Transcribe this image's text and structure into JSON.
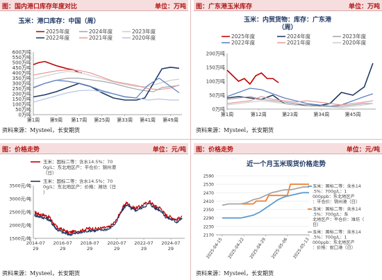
{
  "panels": [
    {
      "header": {
        "title": "图：国内港口库存年度对比",
        "unit": "单位：万吨"
      },
      "source": "资料来源：Mysteel，长安期货",
      "chart_data": {
        "type": "line",
        "title": "玉米：港口库存：中国（周）",
        "ytick_labels": [
          "0万吨",
          "50万吨",
          "100万吨",
          "150万吨",
          "200万吨",
          "250万吨",
          "300万吨",
          "350万吨",
          "400万吨",
          "450万吨",
          "500万吨",
          "550万吨",
          "600万吨"
        ],
        "xtick_labels": [
          "第1周",
          "第9周",
          "第17周",
          "第25周",
          "第33周",
          "第41周",
          "第49周"
        ],
        "ylim": [
          0,
          600
        ],
        "xlim": [
          1,
          53
        ],
        "xticks": [
          1,
          9,
          17,
          25,
          33,
          41,
          49
        ],
        "yticks": [
          0,
          50,
          100,
          150,
          200,
          250,
          300,
          350,
          400,
          450,
          500,
          550,
          600
        ],
        "legend_position": "top",
        "series": [
          {
            "name": "2025年度",
            "color": "#c00000",
            "width": 1.6,
            "x": [
              1,
              3,
              5,
              7,
              9,
              11,
              13,
              15,
              17,
              18
            ],
            "y": [
              480,
              500,
              510,
              490,
              470,
              455,
              440,
              430,
              405,
              400
            ]
          },
          {
            "name": "2024年度",
            "color": "#a6a6a6",
            "width": 1.2,
            "x": [
              1,
              5,
              9,
              13,
              17,
              21,
              25,
              29,
              33,
              37,
              40,
              43,
              46,
              49,
              52
            ],
            "y": [
              255,
              300,
              330,
              350,
              350,
              335,
              320,
              300,
              270,
              245,
              230,
              220,
              260,
              270,
              280
            ]
          },
          {
            "name": "2023年度",
            "color": "#cfcfcf",
            "width": 1.2,
            "x": [
              1,
              5,
              9,
              13,
              17,
              21,
              25,
              29,
              33,
              37,
              41,
              45,
              49,
              52
            ],
            "y": [
              340,
              370,
              395,
              415,
              405,
              375,
              345,
              315,
              290,
              270,
              270,
              300,
              330,
              340
            ]
          },
          {
            "name": "2022年度",
            "color": "#1f3864",
            "width": 1.6,
            "x": [
              1,
              5,
              9,
              13,
              17,
              21,
              25,
              29,
              33,
              37,
              40,
              43,
              46,
              49,
              52
            ],
            "y": [
              170,
              190,
              220,
              260,
              300,
              270,
              210,
              160,
              140,
              140,
              160,
              300,
              440,
              455,
              445
            ]
          },
          {
            "name": "2021年度",
            "color": "#e89b9b",
            "width": 1.2,
            "x": [
              1,
              5,
              9,
              13,
              17,
              21,
              25,
              29,
              33,
              37,
              41,
              45,
              49,
              52
            ],
            "y": [
              380,
              400,
              420,
              430,
              425,
              400,
              360,
              320,
              300,
              280,
              250,
              240,
              255,
              285
            ]
          },
          {
            "name": "2020年度",
            "color": "#b4c7e7",
            "width": 1.2,
            "x": [
              1,
              5,
              9,
              13,
              17,
              21,
              25,
              29,
              33,
              37,
              41,
              45,
              49,
              52
            ],
            "y": [
              120,
              150,
              180,
              210,
              230,
              235,
              220,
              200,
              175,
              160,
              140,
              150,
              140,
              140
            ]
          },
          {
            "name": "",
            "color": "#5b7fbf",
            "width": 1.2,
            "x": [
              1,
              5,
              9,
              13,
              17,
              21,
              25,
              29,
              33,
              37,
              41,
              45,
              49,
              52
            ],
            "y": [
              260,
              300,
              330,
              320,
              300,
              270,
              230,
              200,
              170,
              160,
              280,
              350,
              270,
              210
            ]
          }
        ]
      }
    },
    {
      "header": {
        "title": "图：广东港玉米库存",
        "unit": "单位：万吨"
      },
      "source": "资料来源：Mysteel，长安期货",
      "chart_data": {
        "type": "line",
        "title": "玉米：内贸货物：库存：广东港（周）",
        "ytick_labels": [
          "0万吨",
          "50万吨",
          "100万吨",
          "150万吨",
          "200万吨"
        ],
        "xtick_labels": [
          "第1周",
          "第12周",
          "第23周",
          "第34周",
          "第45周"
        ],
        "ylim": [
          0,
          200
        ],
        "xlim": [
          1,
          53
        ],
        "xticks": [
          1,
          12,
          23,
          34,
          45
        ],
        "yticks": [
          0,
          50,
          100,
          150,
          200
        ],
        "legend_position": "top",
        "series": [
          {
            "name": "2025年度",
            "color": "#c00000",
            "width": 1.6,
            "x": [
              1,
              3,
              5,
              7,
              9,
              11,
              13,
              15,
              17,
              19
            ],
            "y": [
              140,
              120,
              100,
              110,
              90,
              120,
              130,
              110,
              110,
              95
            ]
          },
          {
            "name": "2024年度",
            "color": "#1f3864",
            "width": 1.6,
            "x": [
              1,
              5,
              9,
              13,
              17,
              21,
              25,
              29,
              33,
              37,
              41,
              45,
              49,
              52
            ],
            "y": [
              40,
              45,
              40,
              35,
              50,
              20,
              15,
              15,
              12,
              20,
              60,
              50,
              80,
              165
            ]
          },
          {
            "name": "2023年度",
            "color": "#a6a6a6",
            "width": 1.2,
            "x": [
              1,
              5,
              9,
              13,
              17,
              21,
              25,
              29,
              33,
              37,
              41,
              45,
              49,
              52
            ],
            "y": [
              35,
              40,
              45,
              35,
              30,
              25,
              20,
              15,
              10,
              8,
              10,
              15,
              20,
              20
            ]
          },
          {
            "name": "2022年度",
            "color": "#5b7fbf",
            "width": 1.2,
            "x": [
              1,
              5,
              9,
              13,
              17,
              21,
              25,
              29,
              33,
              37,
              41,
              45,
              49,
              52
            ],
            "y": [
              45,
              60,
              75,
              70,
              55,
              40,
              30,
              20,
              15,
              10,
              15,
              30,
              45,
              55
            ]
          },
          {
            "name": "2021年度",
            "color": "#e89b9b",
            "width": 1.2,
            "x": [
              1,
              5,
              9,
              13,
              17,
              21,
              25,
              29,
              33,
              37,
              41,
              45,
              49,
              52
            ],
            "y": [
              20,
              25,
              30,
              45,
              35,
              30,
              25,
              30,
              25,
              20,
              15,
              20,
              25,
              30
            ]
          },
          {
            "name": "2020年度",
            "color": "#cfcfcf",
            "width": 1.2,
            "x": [
              1,
              5,
              9,
              13,
              17,
              21,
              25,
              29,
              33,
              37,
              41,
              45,
              49,
              52
            ],
            "y": [
              15,
              20,
              25,
              30,
              25,
              20,
              15,
              10,
              10,
              8,
              5,
              10,
              15,
              20
            ]
          }
        ]
      }
    },
    {
      "header": {
        "title": "图：价格走势",
        "unit": "单位：元/吨"
      },
      "source": "资料来源：Mysteel，长安期货",
      "chart_data": {
        "type": "line",
        "ytick_labels": [
          "1500元/吨",
          "2000元/吨",
          "2500元/吨",
          "3000元/吨",
          "3500元/吨"
        ],
        "xtick_labels": [
          "2014-07-29",
          "2016-07-29",
          "2018-07-29",
          "2020-07-29",
          "2022-07-29",
          "2024-07-29"
        ],
        "ylim": [
          1500,
          3500
        ],
        "xlim": [
          2014.4,
          2025.6
        ],
        "xticks": [
          2014.57,
          2016.57,
          2018.57,
          2020.57,
          2022.57,
          2024.57
        ],
        "yticks": [
          1500,
          2000,
          2500,
          3000,
          3500
        ],
        "legend_position": "top",
        "series": [
          {
            "name": "玉米：国标二等：含水14.5%：700g/L：东北地区产：平仓价：锦州港（日）",
            "color": "#c00000",
            "width": 1.2,
            "x": [
              2014.5,
              2014.8,
              2015.2,
              2015.6,
              2015.9,
              2016.2,
              2016.6,
              2017.0,
              2017.5,
              2018.0,
              2018.5,
              2019.0,
              2019.5,
              2020.0,
              2020.5,
              2021.0,
              2021.3,
              2021.7,
              2022.0,
              2022.5,
              2023.0,
              2023.4,
              2023.8,
              2024.2,
              2024.6,
              2025.0,
              2025.4
            ],
            "y": [
              2480,
              2420,
              2380,
              2300,
              2060,
              1900,
              1820,
              1720,
              1760,
              1800,
              1880,
              1860,
              1890,
              1920,
              2150,
              2650,
              2850,
              2680,
              2640,
              2760,
              2900,
              2720,
              2650,
              2380,
              2300,
              2200,
              2340
            ]
          },
          {
            "name": "玉米：国标二等：含水14.5%：700g/L：东北地区产：价格：潍坊（日）",
            "color": "#1f3864",
            "width": 1.2,
            "x": [
              2014.5,
              2014.8,
              2015.2,
              2015.6,
              2015.9,
              2016.2,
              2016.6,
              2017.0,
              2017.5,
              2018.0,
              2018.5,
              2019.0,
              2019.5,
              2020.0,
              2020.5,
              2021.0,
              2021.3,
              2021.7,
              2022.0,
              2022.5,
              2023.0,
              2023.4,
              2023.8,
              2024.2,
              2024.6,
              2025.0,
              2025.4
            ],
            "y": [
              2380,
              2330,
              2280,
              2200,
              1980,
              1820,
              1720,
              1650,
              1680,
              1720,
              1800,
              1790,
              1820,
              1860,
              2080,
              2580,
              2780,
              2600,
              2560,
              2680,
              2820,
              2640,
              2570,
              2300,
              2220,
              2120,
              2260
            ]
          }
        ]
      }
    },
    {
      "header": {
        "title": "图：价格走势",
        "unit": "单位：元/吨"
      },
      "source": "资料来源：Mysteel，长安期货",
      "chart_data": {
        "type": "line",
        "title": "近一个月玉米现货价格走势",
        "ytick_labels": [
          "2170",
          "2230",
          "2290",
          "2350",
          "2410",
          "2470",
          "2530",
          "2590"
        ],
        "xtick_labels": [
          "2025-04-15",
          "2025-04-22",
          "2025-04-29",
          "2025-05-06",
          "2025-05-13"
        ],
        "ylim": [
          2170,
          2590
        ],
        "xlim": [
          0,
          30
        ],
        "xticks": [
          2,
          9,
          16,
          23,
          30
        ],
        "yticks": [
          2170,
          2230,
          2290,
          2350,
          2410,
          2470,
          2530,
          2590
        ],
        "legend_position": "right",
        "series": [
          {
            "name": "玉米：国标二等：含水14.5%：700g/L：1000ppb：东北地区产：平仓价：锦州港（日）",
            "color": "#5b9bd5",
            "width": 1.8,
            "x": [
              2,
              8,
              10,
              12,
              14,
              16,
              18,
              20,
              22,
              24,
              26,
              28,
              30
            ],
            "y": [
              2290,
              2290,
              2300,
              2310,
              2330,
              2360,
              2390,
              2420,
              2440,
              2450,
              2460,
              2470,
              2470
            ]
          },
          {
            "name": "玉米：国标二等：含水14.5%：700g/L：东北地区产：平仓价：潍坊（日）",
            "color": "#ed7d31",
            "width": 1.8,
            "x": [
              8,
              10,
              12,
              13,
              16,
              17,
              23,
              24,
              30
            ],
            "y": [
              2390,
              2390,
              2390,
              2410,
              2410,
              2450,
              2450,
              2530,
              2530
            ]
          },
          {
            "name": "玉米：国标二等：含水14.5%：700g/L：1000ppb：东北地区产：价格：蛇口港（日）",
            "color": "#a6a6a6",
            "width": 1.8,
            "x": [
              2,
              4,
              8,
              10,
              12,
              14,
              16,
              18,
              20,
              22,
              24,
              28,
              30
            ],
            "y": [
              2380,
              2390,
              2390,
              2400,
              2420,
              2430,
              2450,
              2470,
              2480,
              2490,
              2490,
              2510,
              2510
            ]
          }
        ]
      }
    }
  ]
}
